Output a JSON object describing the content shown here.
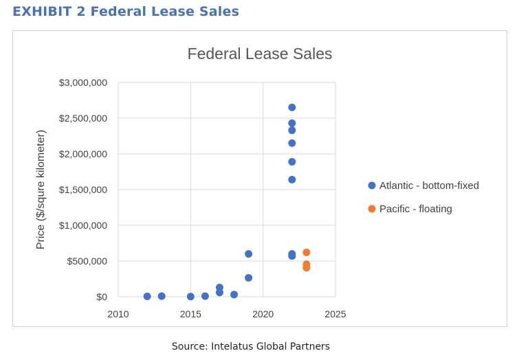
{
  "exhibit_title": "EXHIBIT 2 Federal Lease Sales",
  "source": "Source: Intelatus Global Partners",
  "chart_data": {
    "type": "scatter",
    "title": "Federal Lease Sales",
    "xlabel": "",
    "ylabel": "Price ($/squre kilometer)",
    "xlim": [
      2010,
      2025
    ],
    "ylim": [
      0,
      3000000
    ],
    "x_ticks": [
      "2010",
      "2015",
      "2020",
      "2025"
    ],
    "y_ticks": [
      "$0",
      "$500,000",
      "$1,000,000",
      "$1,500,000",
      "$2,000,000",
      "$2,500,000",
      "$3,000,000"
    ],
    "grid": true,
    "legend_position": "right",
    "series": [
      {
        "name": "Atlantic - bottom-fixed",
        "color": "#4472c4",
        "points": [
          {
            "x": 2012,
            "y": 5000
          },
          {
            "x": 2013,
            "y": 8000
          },
          {
            "x": 2015,
            "y": 2000
          },
          {
            "x": 2016,
            "y": 8000
          },
          {
            "x": 2017,
            "y": 130000
          },
          {
            "x": 2017,
            "y": 60000
          },
          {
            "x": 2018,
            "y": 30000
          },
          {
            "x": 2019,
            "y": 600000
          },
          {
            "x": 2019,
            "y": 265000
          },
          {
            "x": 2022,
            "y": 2650000
          },
          {
            "x": 2022,
            "y": 2430000
          },
          {
            "x": 2022,
            "y": 2330000
          },
          {
            "x": 2022,
            "y": 2150000
          },
          {
            "x": 2022,
            "y": 1890000
          },
          {
            "x": 2022,
            "y": 1640000
          },
          {
            "x": 2022,
            "y": 600000
          },
          {
            "x": 2022,
            "y": 570000
          }
        ]
      },
      {
        "name": "Pacific - floating",
        "color": "#ed7d31",
        "points": [
          {
            "x": 2023,
            "y": 620000
          },
          {
            "x": 2023,
            "y": 455000
          },
          {
            "x": 2023,
            "y": 405000
          }
        ]
      }
    ]
  }
}
